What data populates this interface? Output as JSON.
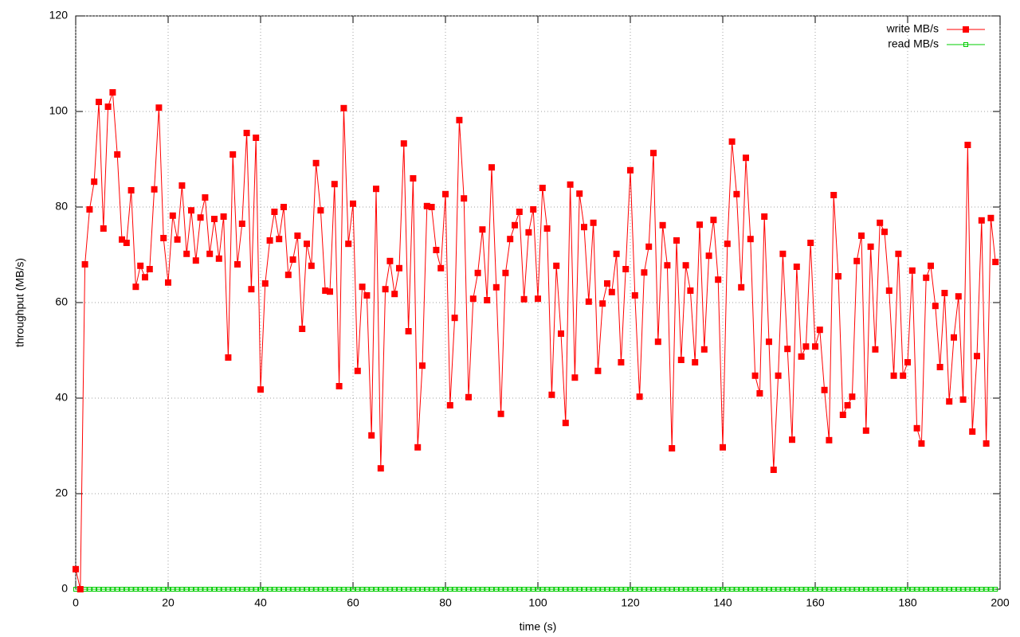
{
  "chart_data": {
    "type": "line",
    "xlabel": "time (s)",
    "ylabel": "throughput (MB/s)",
    "xlim": [
      0,
      200
    ],
    "xticks": [
      0,
      20,
      40,
      60,
      80,
      100,
      120,
      140,
      160,
      180,
      200
    ],
    "ylim": [
      0,
      120
    ],
    "yticks": [
      0,
      20,
      40,
      60,
      80,
      100,
      120
    ],
    "grid": true,
    "legend": "top-right",
    "x": [
      0,
      1,
      2,
      3,
      4,
      5,
      6,
      7,
      8,
      9,
      10,
      11,
      12,
      13,
      14,
      15,
      16,
      17,
      18,
      19,
      20,
      21,
      22,
      23,
      24,
      25,
      26,
      27,
      28,
      29,
      30,
      31,
      32,
      33,
      34,
      35,
      36,
      37,
      38,
      39,
      40,
      41,
      42,
      43,
      44,
      45,
      46,
      47,
      48,
      49,
      50,
      51,
      52,
      53,
      54,
      55,
      56,
      57,
      58,
      59,
      60,
      61,
      62,
      63,
      64,
      65,
      66,
      67,
      68,
      69,
      70,
      71,
      72,
      73,
      74,
      75,
      76,
      77,
      78,
      79,
      80,
      81,
      82,
      83,
      84,
      85,
      86,
      87,
      88,
      89,
      90,
      91,
      92,
      93,
      94,
      95,
      96,
      97,
      98,
      99,
      100,
      101,
      102,
      103,
      104,
      105,
      106,
      107,
      108,
      109,
      110,
      111,
      112,
      113,
      114,
      115,
      116,
      117,
      118,
      119,
      120,
      121,
      122,
      123,
      124,
      125,
      126,
      127,
      128,
      129,
      130,
      131,
      132,
      133,
      134,
      135,
      136,
      137,
      138,
      139,
      140,
      141,
      142,
      143,
      144,
      145,
      146,
      147,
      148,
      149,
      150,
      151,
      152,
      153,
      154,
      155,
      156,
      157,
      158,
      159,
      160,
      161,
      162,
      163,
      164,
      165,
      166,
      167,
      168,
      169,
      170,
      171,
      172,
      173,
      174,
      175,
      176,
      177,
      178,
      179,
      180,
      181,
      182,
      183,
      184,
      185,
      186,
      187,
      188,
      189,
      190,
      191,
      192,
      193,
      194,
      195,
      196,
      197,
      198,
      199
    ],
    "series": [
      {
        "name": "write MB/s",
        "color": "#ff0000",
        "marker": "filled-square",
        "values": [
          4.2,
          0,
          68,
          79.5,
          85.3,
          102,
          75.5,
          101,
          104,
          91,
          73.2,
          72.5,
          83.5,
          63.3,
          67.7,
          65.3,
          67,
          83.7,
          100.8,
          73.5,
          64.2,
          78.2,
          73.2,
          84.5,
          70.2,
          79.3,
          68.8,
          77.8,
          82,
          70.2,
          77.5,
          69.2,
          78,
          48.5,
          91,
          68,
          76.5,
          95.5,
          62.8,
          94.5,
          41.8,
          64,
          73,
          79,
          73.3,
          80,
          65.8,
          69,
          74,
          54.5,
          72.3,
          67.7,
          89.2,
          79.3,
          62.5,
          62.3,
          84.8,
          42.5,
          100.7,
          72.3,
          80.7,
          45.7,
          63.3,
          61.5,
          32.2,
          83.8,
          25.3,
          62.8,
          68.7,
          61.8,
          67.2,
          93.3,
          54,
          86,
          29.7,
          46.8,
          80.2,
          80,
          71,
          67.2,
          82.7,
          38.5,
          56.8,
          98.2,
          81.8,
          40.2,
          60.8,
          66.2,
          75.3,
          60.5,
          88.3,
          63.2,
          36.7,
          66.2,
          73.3,
          76.2,
          79,
          60.7,
          74.7,
          79.5,
          60.8,
          84,
          75.5,
          40.7,
          67.7,
          53.5,
          34.8,
          84.7,
          44.3,
          82.8,
          75.8,
          60.2,
          76.7,
          45.7,
          59.8,
          64,
          62.2,
          70.2,
          47.5,
          67,
          87.7,
          61.5,
          40.3,
          66.3,
          71.7,
          91.3,
          51.8,
          76.2,
          67.8,
          29.5,
          73,
          48,
          67.8,
          62.5,
          47.5,
          76.3,
          50.2,
          69.8,
          77.3,
          64.8,
          29.7,
          72.3,
          93.7,
          82.7,
          63.2,
          90.3,
          73.3,
          44.7,
          41,
          78,
          51.8,
          25,
          44.7,
          70.2,
          50.3,
          31.3,
          67.5,
          48.7,
          50.8,
          72.5,
          50.8,
          54.3,
          41.7,
          31.2,
          82.5,
          65.5,
          36.5,
          38.5,
          40.3,
          68.7,
          74,
          33.2,
          71.7,
          50.2,
          76.7,
          74.8,
          62.5,
          44.7,
          70.2,
          44.7,
          47.5,
          66.7,
          33.7,
          30.5,
          65.2,
          67.7,
          59.3,
          46.5,
          62,
          39.3,
          52.7,
          61.3,
          39.7,
          93,
          33,
          48.8,
          77.2,
          30.5,
          77.7,
          68.5
        ]
      },
      {
        "name": "read MB/s",
        "color": "#00cc00",
        "marker": "open-square",
        "values": [
          0,
          0,
          0,
          0,
          0,
          0,
          0,
          0,
          0,
          0,
          0,
          0,
          0,
          0,
          0,
          0,
          0,
          0,
          0,
          0,
          0,
          0,
          0,
          0,
          0,
          0,
          0,
          0,
          0,
          0,
          0,
          0,
          0,
          0,
          0,
          0,
          0,
          0,
          0,
          0,
          0,
          0,
          0,
          0,
          0,
          0,
          0,
          0,
          0,
          0,
          0,
          0,
          0,
          0,
          0,
          0,
          0,
          0,
          0,
          0,
          0,
          0,
          0,
          0,
          0,
          0,
          0,
          0,
          0,
          0,
          0,
          0,
          0,
          0,
          0,
          0,
          0,
          0,
          0,
          0,
          0,
          0,
          0,
          0,
          0,
          0,
          0,
          0,
          0,
          0,
          0,
          0,
          0,
          0,
          0,
          0,
          0,
          0,
          0,
          0,
          0,
          0,
          0,
          0,
          0,
          0,
          0,
          0,
          0,
          0,
          0,
          0,
          0,
          0,
          0,
          0,
          0,
          0,
          0,
          0,
          0,
          0,
          0,
          0,
          0,
          0,
          0,
          0,
          0,
          0,
          0,
          0,
          0,
          0,
          0,
          0,
          0,
          0,
          0,
          0,
          0,
          0,
          0,
          0,
          0,
          0,
          0,
          0,
          0,
          0,
          0,
          0,
          0,
          0,
          0,
          0,
          0,
          0,
          0,
          0,
          0,
          0,
          0,
          0,
          0,
          0,
          0,
          0,
          0,
          0,
          0,
          0,
          0,
          0,
          0,
          0,
          0,
          0,
          0,
          0,
          0,
          0,
          0,
          0,
          0,
          0,
          0,
          0,
          0,
          0,
          0,
          0,
          0,
          0,
          0,
          0,
          0,
          0,
          0,
          0
        ]
      }
    ]
  }
}
